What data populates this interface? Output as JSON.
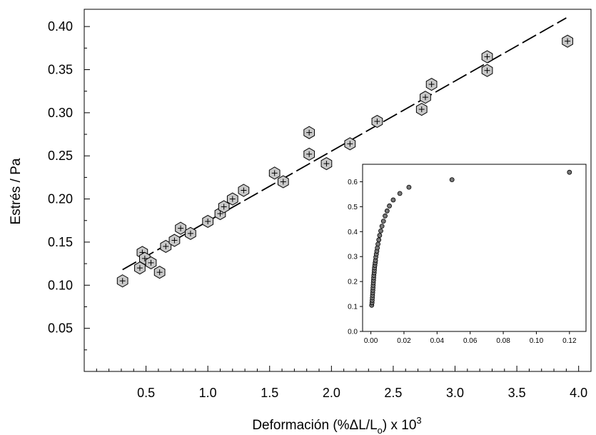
{
  "chart_data": [
    {
      "type": "scatter",
      "title": "",
      "xlabel": "Deformación (%ΔL/Lo) x 10^3",
      "xlabel_parts": {
        "main": "Deformación (%ΔL/L",
        "sub": "o",
        "mid": ") x 10",
        "sup": "3"
      },
      "ylabel": "Estrés / Pa",
      "xlim": [
        0.0,
        4.1
      ],
      "ylim": [
        0.0,
        0.42
      ],
      "xticks": [
        0.5,
        1.0,
        1.5,
        2.0,
        2.5,
        3.0,
        3.5,
        4.0
      ],
      "xtick_labels": [
        "0.5",
        "1.0",
        "1.5",
        "2.0",
        "2.5",
        "3.0",
        "3.5",
        "4.0"
      ],
      "yticks": [
        0.05,
        0.1,
        0.15,
        0.2,
        0.25,
        0.3,
        0.35,
        0.4
      ],
      "ytick_labels": [
        "0.05",
        "0.10",
        "0.15",
        "0.20",
        "0.25",
        "0.30",
        "0.35",
        "0.40"
      ],
      "grid": false,
      "series": [
        {
          "marker": "hexagon-plus",
          "color": "#c8c8c8",
          "points": [
            [
              0.31,
              0.105
            ],
            [
              0.45,
              0.12
            ],
            [
              0.47,
              0.138
            ],
            [
              0.49,
              0.131
            ],
            [
              0.54,
              0.126
            ],
            [
              0.61,
              0.115
            ],
            [
              0.66,
              0.145
            ],
            [
              0.73,
              0.152
            ],
            [
              0.78,
              0.166
            ],
            [
              0.86,
              0.16
            ],
            [
              1.0,
              0.174
            ],
            [
              1.1,
              0.183
            ],
            [
              1.13,
              0.191
            ],
            [
              1.2,
              0.2
            ],
            [
              1.29,
              0.21
            ],
            [
              1.54,
              0.23
            ],
            [
              1.61,
              0.22
            ],
            [
              1.82,
              0.277
            ],
            [
              1.82,
              0.252
            ],
            [
              1.96,
              0.241
            ],
            [
              2.15,
              0.264
            ],
            [
              2.37,
              0.29
            ],
            [
              2.73,
              0.304
            ],
            [
              2.76,
              0.318
            ],
            [
              2.81,
              0.333
            ],
            [
              3.26,
              0.365
            ],
            [
              3.26,
              0.349
            ],
            [
              3.91,
              0.383
            ]
          ]
        }
      ],
      "fit_line": {
        "style": "dashed",
        "color": "#000000",
        "points": [
          [
            0.31,
            0.118
          ],
          [
            3.9,
            0.41
          ]
        ]
      }
    },
    {
      "type": "scatter",
      "title": "",
      "xlabel": "",
      "ylabel": "",
      "xlim": [
        -0.005,
        0.13
      ],
      "ylim": [
        0.0,
        0.67
      ],
      "xticks": [
        0.0,
        0.02,
        0.04,
        0.06,
        0.08,
        0.1,
        0.12
      ],
      "xtick_labels": [
        "0.00",
        "0.02",
        "0.04",
        "0.06",
        "0.08",
        "0.10",
        "0.12"
      ],
      "yticks": [
        0.0,
        0.1,
        0.2,
        0.3,
        0.4,
        0.5,
        0.6
      ],
      "ytick_labels": [
        "0.0",
        "0.1",
        "0.2",
        "0.3",
        "0.4",
        "0.5",
        "0.6"
      ],
      "grid": false,
      "series": [
        {
          "marker": "circle",
          "color": "#777777",
          "points": [
            [
              0.0005,
              0.105
            ],
            [
              0.0007,
              0.115
            ],
            [
              0.0008,
              0.125
            ],
            [
              0.0009,
              0.135
            ],
            [
              0.001,
              0.145
            ],
            [
              0.0011,
              0.155
            ],
            [
              0.0012,
              0.165
            ],
            [
              0.0013,
              0.175
            ],
            [
              0.0014,
              0.185
            ],
            [
              0.0015,
              0.195
            ],
            [
              0.0016,
              0.205
            ],
            [
              0.0017,
              0.215
            ],
            [
              0.0018,
              0.225
            ],
            [
              0.002,
              0.235
            ],
            [
              0.0021,
              0.245
            ],
            [
              0.0022,
              0.255
            ],
            [
              0.0024,
              0.265
            ],
            [
              0.0026,
              0.275
            ],
            [
              0.0028,
              0.285
            ],
            [
              0.003,
              0.298
            ],
            [
              0.0033,
              0.31
            ],
            [
              0.0036,
              0.322
            ],
            [
              0.0039,
              0.335
            ],
            [
              0.0043,
              0.35
            ],
            [
              0.0048,
              0.367
            ],
            [
              0.0053,
              0.385
            ],
            [
              0.006,
              0.403
            ],
            [
              0.0067,
              0.422
            ],
            [
              0.0076,
              0.442
            ],
            [
              0.0086,
              0.463
            ],
            [
              0.0098,
              0.483
            ],
            [
              0.0112,
              0.503
            ],
            [
              0.0135,
              0.527
            ],
            [
              0.0175,
              0.553
            ],
            [
              0.023,
              0.578
            ],
            [
              0.049,
              0.608
            ],
            [
              0.12,
              0.638
            ]
          ]
        }
      ]
    }
  ]
}
